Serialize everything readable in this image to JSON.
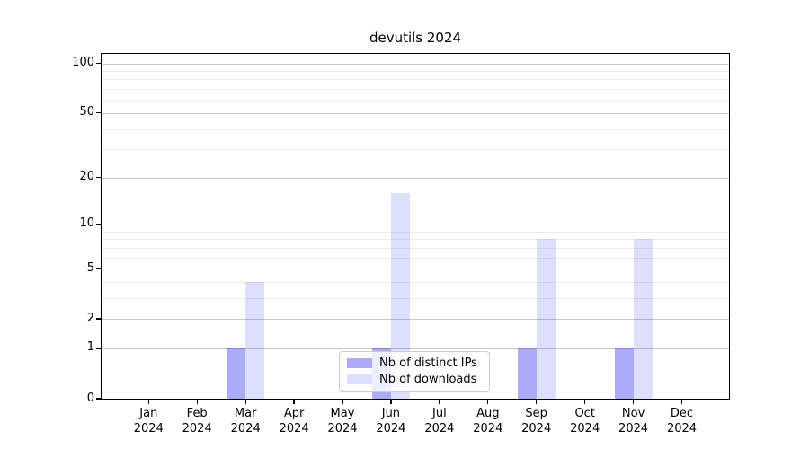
{
  "figure": {
    "background": "#ffffff"
  },
  "chart_data": {
    "type": "bar",
    "title": "devutils 2024",
    "categories": [
      "Jan",
      "Feb",
      "Mar",
      "Apr",
      "May",
      "Jun",
      "Jul",
      "Aug",
      "Sep",
      "Oct",
      "Nov",
      "Dec"
    ],
    "x_year_label": "2024",
    "series": [
      {
        "name": "Nb of distinct IPs",
        "color": "rgba(0,0,238,0.33)",
        "values": [
          0,
          0,
          1,
          0,
          0,
          1,
          0,
          0,
          1,
          0,
          1,
          0
        ]
      },
      {
        "name": "Nb of downloads",
        "color": "rgba(0,0,238,0.13)",
        "values": [
          0,
          0,
          4,
          0,
          0,
          16,
          0,
          0,
          8,
          0,
          8,
          0
        ]
      }
    ],
    "yscale": "log10(1+x)",
    "ylim": [
      0,
      113
    ],
    "y_major_ticks": [
      0,
      1,
      2,
      5,
      10,
      20,
      50,
      100
    ],
    "y_minor_gridlines": [
      3,
      4,
      6,
      7,
      8,
      9,
      30,
      40,
      60,
      70,
      80,
      90
    ],
    "grid": true,
    "legend_position": "lower center"
  },
  "styles": {
    "major_grid_color": "#c8c8c8",
    "minor_grid_color": "#ececec",
    "spine_color": "#000000",
    "text_color": "#000000",
    "legend_border_color": "#cccccc"
  }
}
